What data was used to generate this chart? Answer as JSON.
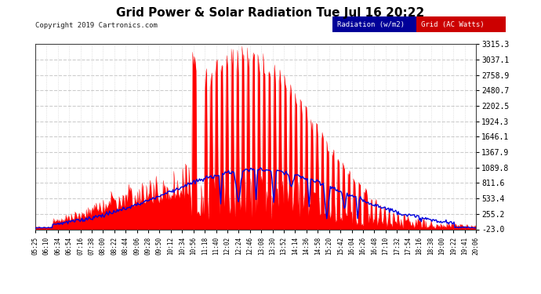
{
  "title": "Grid Power & Solar Radiation Tue Jul 16 20:22",
  "copyright": "Copyright 2019 Cartronics.com",
  "legend_radiation": "Radiation (w/m2)",
  "legend_grid": "Grid (AC Watts)",
  "ymin": -23.0,
  "ymax": 3315.3,
  "yticks": [
    3315.3,
    3037.1,
    2758.9,
    2480.7,
    2202.5,
    1924.3,
    1646.1,
    1367.9,
    1089.8,
    811.6,
    533.4,
    255.2,
    -23.0
  ],
  "background_color": "#ffffff",
  "plot_bg_color": "#ffffff",
  "grid_color_h": "#cccccc",
  "grid_color_v": "#cccccc",
  "red_color": "#ff0000",
  "blue_color": "#0000dd",
  "title_fontsize": 12,
  "xtick_labels": [
    "05:25",
    "06:10",
    "06:34",
    "06:54",
    "07:16",
    "07:38",
    "08:00",
    "08:22",
    "08:44",
    "09:06",
    "09:28",
    "09:50",
    "10:12",
    "10:34",
    "10:56",
    "11:18",
    "11:40",
    "12:02",
    "12:24",
    "12:46",
    "13:08",
    "13:30",
    "13:52",
    "14:14",
    "14:36",
    "14:58",
    "15:20",
    "15:42",
    "16:04",
    "16:26",
    "16:48",
    "17:10",
    "17:32",
    "17:54",
    "18:16",
    "18:38",
    "19:00",
    "19:22",
    "19:41",
    "20:06"
  ]
}
